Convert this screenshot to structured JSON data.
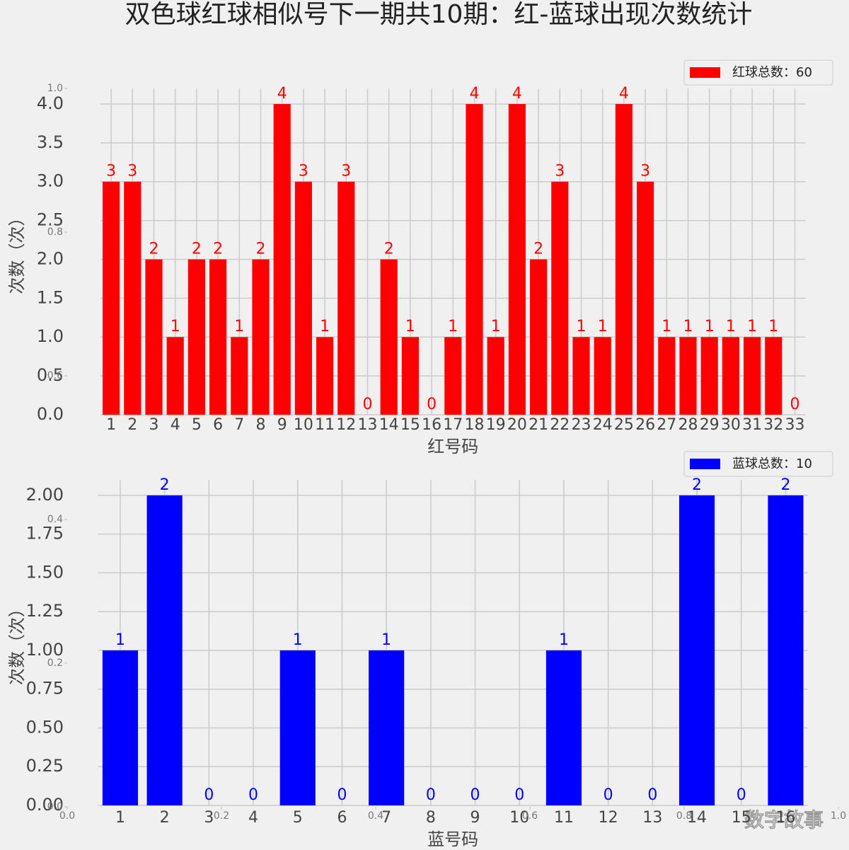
{
  "title": "双色球红球相似号下一期共10期：红-蓝球出现次数统计",
  "watermark": "数字故事",
  "chart_data": [
    {
      "type": "bar",
      "xlabel": "红号码",
      "ylabel": "次数（次）",
      "color": "#ff0000",
      "grid": true,
      "legend": "upper right",
      "categories": [
        "1",
        "2",
        "3",
        "4",
        "5",
        "6",
        "7",
        "8",
        "9",
        "10",
        "11",
        "12",
        "13",
        "14",
        "15",
        "16",
        "17",
        "18",
        "19",
        "20",
        "21",
        "22",
        "23",
        "24",
        "25",
        "26",
        "27",
        "28",
        "29",
        "30",
        "31",
        "32",
        "33"
      ],
      "series": [
        {
          "name": "红球总数：60",
          "color": "#ff0000",
          "values": [
            3,
            3,
            2,
            1,
            2,
            2,
            1,
            2,
            4,
            3,
            1,
            3,
            0,
            2,
            1,
            0,
            1,
            4,
            1,
            4,
            2,
            3,
            1,
            1,
            4,
            3,
            1,
            1,
            1,
            1,
            1,
            1,
            0
          ]
        }
      ],
      "ylim": [
        0,
        4.2
      ],
      "yticks": [
        {
          "value": 0,
          "label": "0.0"
        },
        {
          "value": 0.5,
          "label": "0.5"
        },
        {
          "value": 1,
          "label": "1.0"
        },
        {
          "value": 1.5,
          "label": "1.5"
        },
        {
          "value": 2,
          "label": "2.0"
        },
        {
          "value": 2.5,
          "label": "2.5"
        },
        {
          "value": 3,
          "label": "3.0"
        },
        {
          "value": 3.5,
          "label": "3.5"
        },
        {
          "value": 4,
          "label": "4.0"
        }
      ]
    },
    {
      "type": "bar",
      "xlabel": "蓝号码",
      "ylabel": "次数（次）",
      "color": "#0000ff",
      "grid": true,
      "legend": "upper right",
      "categories": [
        "1",
        "2",
        "3",
        "4",
        "5",
        "6",
        "7",
        "8",
        "9",
        "10",
        "11",
        "12",
        "13",
        "14",
        "15",
        "16"
      ],
      "series": [
        {
          "name": "蓝球总数：10",
          "color": "#0000ff",
          "values": [
            1,
            2,
            0,
            0,
            1,
            0,
            1,
            0,
            0,
            0,
            1,
            0,
            0,
            2,
            0,
            2
          ]
        }
      ],
      "ylim": [
        0,
        2.1
      ],
      "yticks": [
        {
          "value": 0,
          "label": "0.00"
        },
        {
          "value": 0.25,
          "label": "0.25"
        },
        {
          "value": 0.5,
          "label": "0.50"
        },
        {
          "value": 0.75,
          "label": "0.75"
        },
        {
          "value": 1,
          "label": "1.00"
        },
        {
          "value": 1.25,
          "label": "1.25"
        },
        {
          "value": 1.5,
          "label": "1.50"
        },
        {
          "value": 1.75,
          "label": "1.75"
        },
        {
          "value": 2,
          "label": "2.00"
        }
      ]
    },
    {
      "type": "empty",
      "xlim": [
        0,
        1
      ],
      "ylim": [
        0,
        1
      ],
      "xticks": [
        {
          "value": 0,
          "label": "0.0"
        },
        {
          "value": 0.2,
          "label": "0.2"
        },
        {
          "value": 0.4,
          "label": "0.4"
        },
        {
          "value": 0.6,
          "label": "0.6"
        },
        {
          "value": 0.8,
          "label": "0.8"
        },
        {
          "value": 1,
          "label": "1.0"
        }
      ],
      "yticks": [
        {
          "value": 0,
          "label": "0.0"
        },
        {
          "value": 0.2,
          "label": "0.2"
        },
        {
          "value": 0.4,
          "label": "0.4"
        },
        {
          "value": 0.6,
          "label": "0.6"
        },
        {
          "value": 0.8,
          "label": "0.8"
        },
        {
          "value": 1,
          "label": "1.0"
        }
      ]
    }
  ]
}
